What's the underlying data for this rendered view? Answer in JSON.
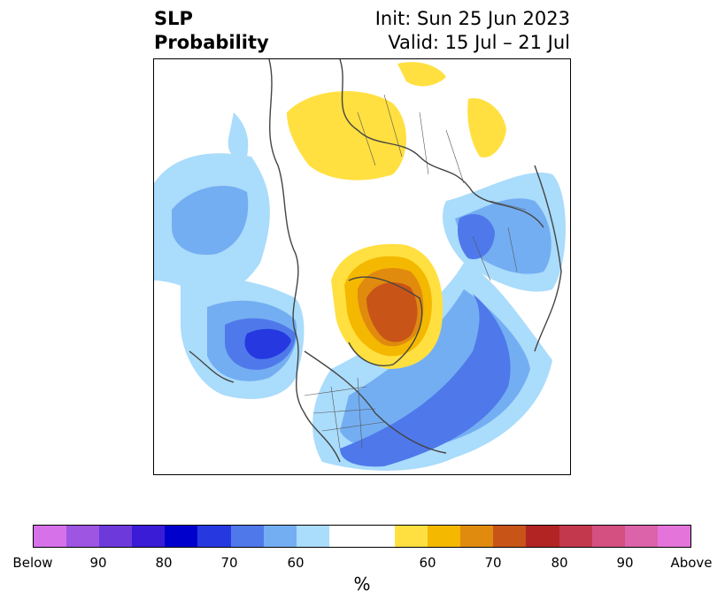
{
  "title": {
    "left_line1": "SLP",
    "left_line2": "Probability",
    "right_line1": "Init: Sun 25 Jun 2023",
    "right_line2": "Valid: 15 Jul – 21 Jul"
  },
  "colorbar": {
    "colors": [
      "#d771ea",
      "#9d55e2",
      "#6d39db",
      "#3a1cd6",
      "#0000cd",
      "#2639e0",
      "#4f79ea",
      "#74aef2",
      "#aadcfb",
      "#ffffff",
      "#ffffff",
      "#ffe040",
      "#f4b800",
      "#e08a0e",
      "#c85418",
      "#b22424",
      "#c4384e",
      "#d45080",
      "#dc62aa",
      "#e474da"
    ],
    "tick_labels": [
      "Below",
      "90",
      "80",
      "70",
      "60",
      "60",
      "70",
      "80",
      "90",
      "Above"
    ],
    "unit_label": "%"
  },
  "legend_categories": {
    "below_normal": "blue shades",
    "above_normal": "yellow-red shades"
  }
}
